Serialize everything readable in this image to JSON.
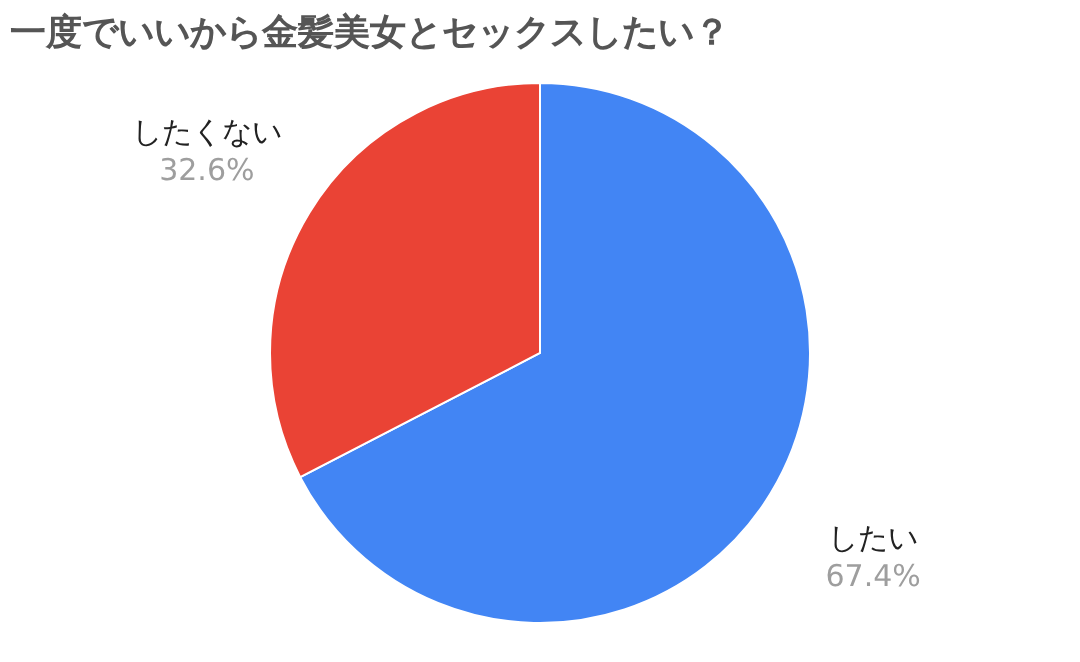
{
  "chart_data": {
    "type": "pie",
    "title": "一度でいいから金髪美女とセックスしたい？",
    "categories": [
      "したい",
      "したくない"
    ],
    "values": [
      67.4,
      32.6
    ],
    "colors": [
      "#4285f4",
      "#ea4335"
    ],
    "value_labels": [
      "67.4%",
      "32.6%"
    ]
  }
}
